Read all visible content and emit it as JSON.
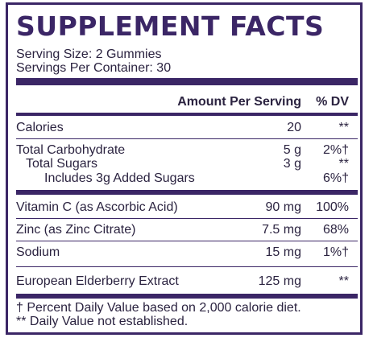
{
  "title": "SUPPLEMENT FACTS",
  "serving_size": "Serving Size: 2 Gummies",
  "servings_per_container": "Servings Per Container: 30",
  "header": {
    "amount": "Amount Per Serving",
    "dv": "% DV"
  },
  "rows": [
    {
      "label": "Calories",
      "amount": "20",
      "dv": "**"
    },
    {
      "label": "Total Carbohydrate",
      "amount": "5 g",
      "dv": "2%†"
    },
    {
      "label": "Total Sugars",
      "amount": "3 g",
      "dv": "**"
    },
    {
      "label": "Includes 3g Added Sugars",
      "amount": "",
      "dv": "6%†"
    },
    {
      "label": "Vitamin C (as Ascorbic Acid)",
      "amount": "90 mg",
      "dv": "100%"
    },
    {
      "label": "Zinc (as Zinc Citrate)",
      "amount": "7.5 mg",
      "dv": "68%"
    },
    {
      "label": "Sodium",
      "amount": "15 mg",
      "dv": "1%†"
    },
    {
      "label": "European Elderberry Extract",
      "amount": "125 mg",
      "dv": "**"
    }
  ],
  "footnotes": [
    "†  Percent Daily Value based on 2,000 calorie diet.",
    "** Daily Value not established."
  ],
  "colors": {
    "accent": "#3b2666",
    "text": "#2b2340"
  }
}
